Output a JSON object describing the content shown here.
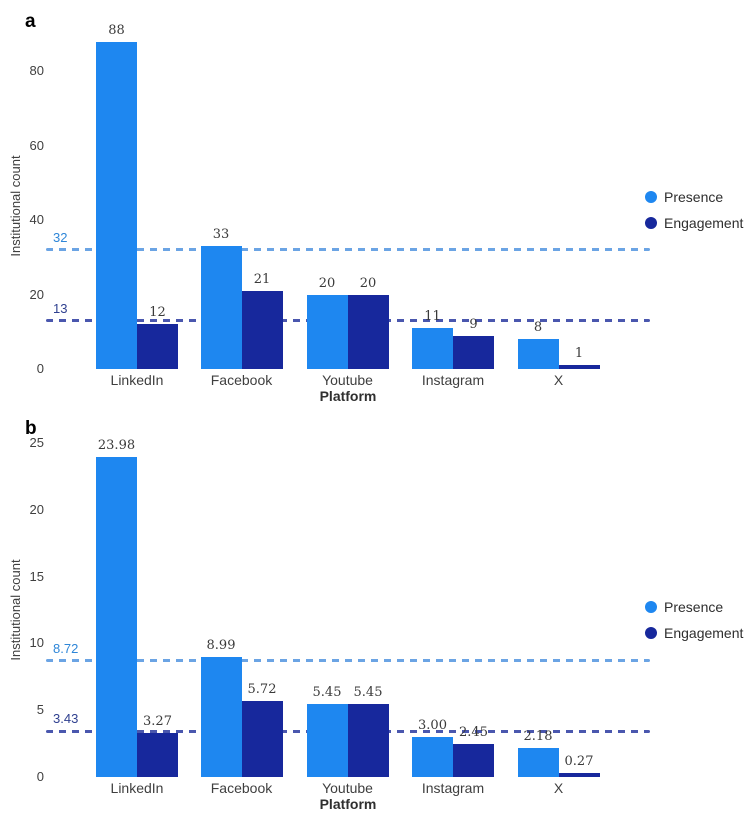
{
  "colors": {
    "presence": "#1e87f0",
    "engagement": "#17289c",
    "presence_dash": "#6ba4e4",
    "engagement_dash": "#4a57ae",
    "presence_threshold_label": "#2e86d8",
    "engagement_threshold_label": "#2e3f8f",
    "text": "#3f3f3f"
  },
  "chart_data": [
    {
      "type": "bar",
      "panel_label": "a",
      "ylabel": "Institutional count",
      "xlabel": "Platform",
      "categories": [
        "LinkedIn",
        "Facebook",
        "Youtube",
        "Instagram",
        "X"
      ],
      "series": [
        {
          "name": "Presence",
          "color": "#1e87f0",
          "values": [
            88,
            33,
            20,
            11,
            8
          ],
          "labels": [
            "88",
            "33",
            "20",
            "11",
            "8"
          ]
        },
        {
          "name": "Engagement",
          "color": "#17289c",
          "values": [
            12,
            21,
            20,
            9,
            1
          ],
          "labels": [
            "12",
            "21",
            "20",
            "9",
            "1"
          ]
        }
      ],
      "thresholds": [
        {
          "series": "Presence",
          "value": 32,
          "label": "32",
          "line_color": "#6ba4e4",
          "label_color": "#2e86d8"
        },
        {
          "series": "Engagement",
          "value": 13,
          "label": "13",
          "line_color": "#4a57ae",
          "label_color": "#2e3f8f"
        }
      ],
      "yticks": [
        0,
        20,
        40,
        60,
        80
      ],
      "ylim": [
        0,
        92
      ],
      "grid": false,
      "legend_position": "right"
    },
    {
      "type": "bar",
      "panel_label": "b",
      "ylabel": "Institutional count",
      "xlabel": "Platform",
      "categories": [
        "LinkedIn",
        "Facebook",
        "Youtube",
        "Instagram",
        "X"
      ],
      "series": [
        {
          "name": "Presence",
          "color": "#1e87f0",
          "values": [
            23.98,
            8.99,
            5.45,
            3.0,
            2.18
          ],
          "labels": [
            "23.98",
            "8.99",
            "5.45",
            "3.00",
            "2.18"
          ]
        },
        {
          "name": "Engagement",
          "color": "#17289c",
          "values": [
            3.27,
            5.72,
            5.45,
            2.45,
            0.27
          ],
          "labels": [
            "3.27",
            "5.72",
            "5.45",
            "2.45",
            "0.27"
          ]
        }
      ],
      "thresholds": [
        {
          "series": "Presence",
          "value": 8.72,
          "label": "8.72",
          "line_color": "#6ba4e4",
          "label_color": "#2e86d8"
        },
        {
          "series": "Engagement",
          "value": 3.43,
          "label": "3.43",
          "line_color": "#4a57ae",
          "label_color": "#2e3f8f"
        }
      ],
      "yticks": [
        0,
        5,
        10,
        15,
        20,
        25
      ],
      "ylim": [
        0,
        25.5
      ],
      "grid": false,
      "legend_position": "right"
    }
  ]
}
